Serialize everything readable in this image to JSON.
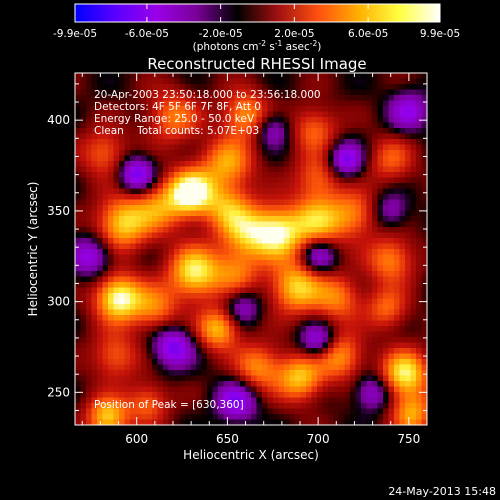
{
  "colorbar": {
    "tick_labels": [
      "-9.9e-05",
      "-6.0e-05",
      "-2.0e-05",
      "2.0e-05",
      "6.0e-05",
      "9.9e-05"
    ],
    "tick_values": [
      -9.9e-05,
      -6e-05,
      -2e-05,
      2e-05,
      6e-05,
      9.9e-05
    ],
    "range": [
      -9.9e-05,
      9.9e-05
    ],
    "unit_label_parts": [
      "(photons cm",
      "-2",
      " s",
      "-1",
      " asec",
      "-2",
      ")"
    ],
    "colors": [
      "#0000ff",
      "#5a00ff",
      "#9a00e8",
      "#7a0098",
      "#000000",
      "#a01010",
      "#ff5010",
      "#ffb000",
      "#ffff40",
      "#ffffff"
    ]
  },
  "chart_data": {
    "type": "heatmap",
    "title": "Reconstructed RHESSI Image",
    "xlabel": "Heliocentric X (arcsec)",
    "ylabel": "Heliocentric Y (arcsec)",
    "xlim": [
      566,
      760
    ],
    "ylim": [
      232,
      426
    ],
    "x_ticks": [
      600,
      650,
      700,
      750
    ],
    "y_ticks": [
      250,
      300,
      350,
      400
    ],
    "x_tick_labels": [
      "600",
      "650",
      "700",
      "750"
    ],
    "y_tick_labels": [
      "250",
      "300",
      "350",
      "400"
    ],
    "info_lines": [
      "20-Apr-2003 23:50:18.000 to 23:56:18.000",
      "Detectors: 4F 5F 6F 7F 8F, Att 0",
      "Energy Range: 25.0 - 50.0 keV",
      "Clean    Total counts: 5.07E+03"
    ],
    "peak_label": "Position of Peak = [630,360]",
    "peak": [
      630,
      360
    ],
    "blobs": [
      {
        "x": 630,
        "y": 360,
        "v": 1.0,
        "s": 9
      },
      {
        "x": 592,
        "y": 343,
        "v": 0.75,
        "s": 10
      },
      {
        "x": 612,
        "y": 352,
        "v": 0.5,
        "s": 10
      },
      {
        "x": 650,
        "y": 376,
        "v": 0.6,
        "s": 10
      },
      {
        "x": 650,
        "y": 352,
        "v": 0.5,
        "s": 9
      },
      {
        "x": 660,
        "y": 338,
        "v": 0.6,
        "s": 10
      },
      {
        "x": 678,
        "y": 338,
        "v": 0.85,
        "s": 10
      },
      {
        "x": 700,
        "y": 344,
        "v": 0.65,
        "s": 10
      },
      {
        "x": 720,
        "y": 348,
        "v": 0.5,
        "s": 9
      },
      {
        "x": 632,
        "y": 316,
        "v": 0.85,
        "s": 10
      },
      {
        "x": 655,
        "y": 316,
        "v": 0.45,
        "s": 9
      },
      {
        "x": 590,
        "y": 302,
        "v": 0.95,
        "s": 9
      },
      {
        "x": 610,
        "y": 296,
        "v": 0.5,
        "s": 9
      },
      {
        "x": 688,
        "y": 308,
        "v": 0.75,
        "s": 10
      },
      {
        "x": 711,
        "y": 302,
        "v": 0.5,
        "s": 9
      },
      {
        "x": 740,
        "y": 323,
        "v": 0.55,
        "s": 9
      },
      {
        "x": 738,
        "y": 296,
        "v": 0.45,
        "s": 8
      },
      {
        "x": 645,
        "y": 285,
        "v": 0.7,
        "s": 8
      },
      {
        "x": 588,
        "y": 270,
        "v": 0.45,
        "s": 9
      },
      {
        "x": 667,
        "y": 264,
        "v": 0.55,
        "s": 9
      },
      {
        "x": 690,
        "y": 258,
        "v": 0.7,
        "s": 9
      },
      {
        "x": 712,
        "y": 270,
        "v": 0.6,
        "s": 9
      },
      {
        "x": 748,
        "y": 260,
        "v": 0.85,
        "s": 9
      },
      {
        "x": 752,
        "y": 238,
        "v": 0.6,
        "s": 8
      },
      {
        "x": 584,
        "y": 236,
        "v": 0.75,
        "s": 8
      },
      {
        "x": 606,
        "y": 244,
        "v": 0.45,
        "s": 8
      },
      {
        "x": 620,
        "y": 402,
        "v": 0.5,
        "s": 10
      },
      {
        "x": 660,
        "y": 403,
        "v": 0.6,
        "s": 9
      },
      {
        "x": 698,
        "y": 395,
        "v": 0.45,
        "s": 9
      },
      {
        "x": 700,
        "y": 368,
        "v": 0.45,
        "s": 9
      },
      {
        "x": 740,
        "y": 378,
        "v": 0.4,
        "s": 9
      },
      {
        "x": 582,
        "y": 382,
        "v": 0.45,
        "s": 9
      },
      {
        "x": 600,
        "y": 370,
        "v": -0.65,
        "s": 7
      },
      {
        "x": 715,
        "y": 378,
        "v": -0.6,
        "s": 7
      },
      {
        "x": 700,
        "y": 325,
        "v": -0.5,
        "s": 7
      },
      {
        "x": 620,
        "y": 275,
        "v": -0.6,
        "s": 8
      },
      {
        "x": 700,
        "y": 278,
        "v": -0.55,
        "s": 7
      },
      {
        "x": 655,
        "y": 245,
        "v": -0.55,
        "s": 8
      },
      {
        "x": 730,
        "y": 250,
        "v": -0.45,
        "s": 7
      },
      {
        "x": 675,
        "y": 395,
        "v": -0.4,
        "s": 7
      },
      {
        "x": 575,
        "y": 325,
        "v": -0.5,
        "s": 8
      },
      {
        "x": 750,
        "y": 405,
        "v": -0.45,
        "s": 8
      },
      {
        "x": 740,
        "y": 350,
        "v": -0.35,
        "s": 7
      },
      {
        "x": 658,
        "y": 297,
        "v": -0.4,
        "s": 7
      }
    ]
  },
  "footer": {
    "timestamp": "24-May-2013 15:48"
  }
}
